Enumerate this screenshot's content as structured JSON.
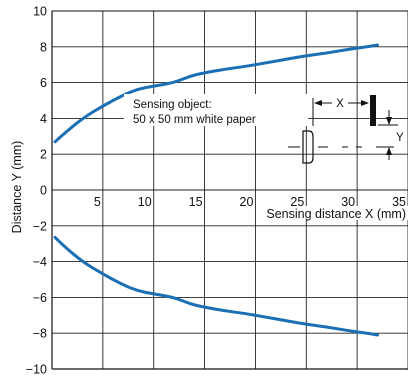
{
  "chart_data": {
    "type": "line",
    "title": "",
    "xlabel": "Sensing distance X (mm)",
    "ylabel": "Distance Y (mm)",
    "xlim": [
      0,
      35
    ],
    "ylim": [
      -10,
      10
    ],
    "x_ticks": [
      5,
      10,
      15,
      20,
      25,
      30,
      35
    ],
    "y_ticks": [
      10,
      8,
      6,
      4,
      2,
      0,
      -2,
      -4,
      -6,
      -8,
      -10
    ],
    "y_tick_labels": [
      "10",
      "8",
      "6",
      "4",
      "2",
      "0",
      "−2",
      "−4",
      "−6",
      "−8",
      "−10"
    ],
    "grid": true,
    "series": [
      {
        "color": "#1a6fb5",
        "points": [
          [
            0.3,
            2.7
          ],
          [
            1.5,
            3.3
          ],
          [
            3,
            4.0
          ],
          [
            5,
            4.7
          ],
          [
            7,
            5.3
          ],
          [
            8.5,
            5.65
          ],
          [
            10,
            5.8
          ],
          [
            12,
            6.0
          ],
          [
            13.5,
            6.35
          ],
          [
            15,
            6.55
          ],
          [
            17,
            6.75
          ],
          [
            19,
            6.9
          ],
          [
            21,
            7.1
          ],
          [
            23,
            7.3
          ],
          [
            25,
            7.5
          ],
          [
            27,
            7.65
          ],
          [
            29,
            7.85
          ],
          [
            31,
            8.0
          ],
          [
            32,
            8.1
          ]
        ]
      },
      {
        "color": "#1a6fb5",
        "points": [
          [
            0.3,
            -2.65
          ],
          [
            1.5,
            -3.3
          ],
          [
            3,
            -4.0
          ],
          [
            5,
            -4.7
          ],
          [
            7,
            -5.3
          ],
          [
            8.5,
            -5.65
          ],
          [
            10,
            -5.8
          ],
          [
            12,
            -6.0
          ],
          [
            13.5,
            -6.35
          ],
          [
            15,
            -6.55
          ],
          [
            17,
            -6.75
          ],
          [
            19,
            -6.9
          ],
          [
            21,
            -7.1
          ],
          [
            23,
            -7.3
          ],
          [
            25,
            -7.5
          ],
          [
            27,
            -7.65
          ],
          [
            29,
            -7.85
          ],
          [
            31,
            -8.0
          ],
          [
            32,
            -8.1
          ]
        ]
      }
    ],
    "annotation": {
      "line1": "Sensing object:",
      "line2": "50 x 50 mm white paper",
      "x_marker": "X",
      "y_marker": "Y"
    }
  }
}
